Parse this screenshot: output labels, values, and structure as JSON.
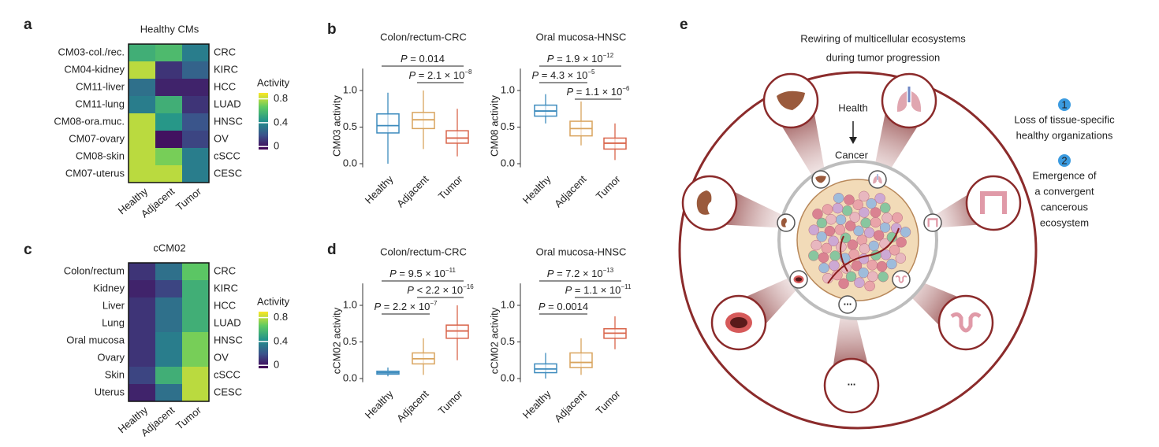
{
  "panel_labels": [
    "a",
    "b",
    "c",
    "d",
    "e"
  ],
  "chart_data": [
    {
      "type": "heatmap",
      "title": "Healthy CMs",
      "rows": [
        "CM03-col./rec.",
        "CM04-kidney",
        "CM11-liver",
        "CM11-lung",
        "CM08-ora.muc.",
        "CM07-ovary",
        "CM08-skin",
        "CM07-uterus"
      ],
      "rows_right": [
        "CRC",
        "KIRC",
        "HCC",
        "LUAD",
        "HNSC",
        "OV",
        "cSCC",
        "CESC"
      ],
      "columns": [
        "Healthy",
        "Adjacent",
        "Tumor"
      ],
      "values": [
        [
          0.55,
          0.6,
          0.35
        ],
        [
          0.8,
          0.1,
          0.25
        ],
        [
          0.3,
          0.05,
          0.05
        ],
        [
          0.35,
          0.55,
          0.1
        ],
        [
          0.8,
          0.45,
          0.2
        ],
        [
          0.8,
          0.0,
          0.15
        ],
        [
          0.8,
          0.7,
          0.35
        ],
        [
          0.8,
          0.8,
          0.35
        ]
      ],
      "colorbar_title": "Activity",
      "colorbar_lim": [
        -0.05,
        0.9
      ],
      "colorbar_ticks": [
        0,
        0.4,
        0.8
      ]
    },
    {
      "type": "box",
      "title": "Colon/rectum-CRC",
      "ylabel": "CM03 activity",
      "categories": [
        "Healthy",
        "Adjacent",
        "Tumor"
      ],
      "colors": [
        "#3d8bbd",
        "#d9a45e",
        "#d9654b"
      ],
      "stats": [
        {
          "min": 0,
          "q1": 0.42,
          "median": 0.52,
          "q3": 0.68,
          "max": 0.97
        },
        {
          "min": 0.2,
          "q1": 0.48,
          "median": 0.6,
          "q3": 0.7,
          "max": 1.0
        },
        {
          "min": 0.1,
          "q1": 0.28,
          "median": 0.35,
          "q3": 0.45,
          "max": 0.75
        }
      ],
      "ylim": [
        -0.05,
        1.3
      ],
      "yticks": [
        {
          "value": 0,
          "label": "0.0"
        },
        {
          "value": 0.5,
          "label": "0.5"
        },
        {
          "value": 1,
          "label": "1.0"
        }
      ],
      "annotations": [
        {
          "italic": "P",
          "text": " = 0.014"
        },
        {
          "italic": "P",
          "text": " = 2.1 × 10",
          "exp": "−8"
        }
      ]
    },
    {
      "type": "box",
      "title": "Oral mucosa-HNSC",
      "ylabel": "CM08 activity",
      "categories": [
        "Healthy",
        "Adjacent",
        "Tumor"
      ],
      "colors": [
        "#3d8bbd",
        "#d9a45e",
        "#d9654b"
      ],
      "stats": [
        {
          "min": 0.55,
          "q1": 0.65,
          "median": 0.72,
          "q3": 0.8,
          "max": 0.95
        },
        {
          "min": 0.25,
          "q1": 0.38,
          "median": 0.48,
          "q3": 0.58,
          "max": 0.85
        },
        {
          "min": 0.05,
          "q1": 0.2,
          "median": 0.28,
          "q3": 0.35,
          "max": 0.55
        }
      ],
      "ylim": [
        -0.05,
        1.3
      ],
      "yticks": [
        {
          "value": 0,
          "label": "0.0"
        },
        {
          "value": 0.5,
          "label": "0.5"
        },
        {
          "value": 1,
          "label": "1.0"
        }
      ],
      "annotations": [
        {
          "italic": "P",
          "text": " = 1.9 × 10",
          "exp": "−12"
        },
        {
          "italic": "P",
          "text": " = 4.3 × 10",
          "exp": "−5"
        },
        {
          "italic": "P",
          "text": " = 1.1 × 10",
          "exp": "−6"
        }
      ]
    },
    {
      "type": "heatmap",
      "title": "cCM02",
      "rows": [
        "Colon/rectum",
        "Kidney",
        "Liver",
        "Lung",
        "Oral mucosa",
        "Ovary",
        "Skin",
        "Uterus"
      ],
      "rows_right": [
        "CRC",
        "KIRC",
        "HCC",
        "LUAD",
        "HNSC",
        "OV",
        "cSCC",
        "CESC"
      ],
      "columns": [
        "Healthy",
        "Adjacent",
        "Tumor"
      ],
      "values": [
        [
          0.1,
          0.3,
          0.65
        ],
        [
          0.05,
          0.15,
          0.55
        ],
        [
          0.1,
          0.3,
          0.55
        ],
        [
          0.1,
          0.3,
          0.55
        ],
        [
          0.1,
          0.35,
          0.7
        ],
        [
          0.1,
          0.35,
          0.7
        ],
        [
          0.15,
          0.55,
          0.8
        ],
        [
          0.05,
          0.3,
          0.8
        ]
      ],
      "colorbar_title": "Activity",
      "colorbar_lim": [
        -0.05,
        0.9
      ],
      "colorbar_ticks": [
        0,
        0.4,
        0.8
      ]
    },
    {
      "type": "box",
      "title": "Colon/rectum-CRC",
      "ylabel": "cCM02 activity",
      "categories": [
        "Healthy",
        "Adjacent",
        "Tumor"
      ],
      "colors": [
        "#3d8bbd",
        "#d9a45e",
        "#d9654b"
      ],
      "stats": [
        {
          "min": 0.03,
          "q1": 0.06,
          "median": 0.08,
          "q3": 0.1,
          "max": 0.15
        },
        {
          "min": 0.05,
          "q1": 0.2,
          "median": 0.27,
          "q3": 0.35,
          "max": 0.55
        },
        {
          "min": 0.25,
          "q1": 0.55,
          "median": 0.65,
          "q3": 0.73,
          "max": 1.0
        }
      ],
      "ylim": [
        -0.05,
        1.3
      ],
      "yticks": [
        {
          "value": 0,
          "label": "0.0"
        },
        {
          "value": 0.5,
          "label": "0.5"
        },
        {
          "value": 1,
          "label": "1.0"
        }
      ],
      "annotations": [
        {
          "italic": "P",
          "text": " = 9.5 × 10",
          "exp": "−11"
        },
        {
          "italic": "P",
          "text": " < 2.2 × 10",
          "exp": "−16"
        },
        {
          "italic": "P",
          "text": " = 2.2 × 10",
          "exp": "−7"
        }
      ]
    },
    {
      "type": "box",
      "title": "Oral mucosa-HNSC",
      "ylabel": "cCM02 activity",
      "categories": [
        "Healthy",
        "Adjacent",
        "Tumor"
      ],
      "colors": [
        "#3d8bbd",
        "#d9a45e",
        "#d9654b"
      ],
      "stats": [
        {
          "min": 0.0,
          "q1": 0.08,
          "median": 0.13,
          "q3": 0.2,
          "max": 0.35
        },
        {
          "min": 0.05,
          "q1": 0.15,
          "median": 0.22,
          "q3": 0.35,
          "max": 0.55
        },
        {
          "min": 0.4,
          "q1": 0.55,
          "median": 0.62,
          "q3": 0.68,
          "max": 0.85
        }
      ],
      "ylim": [
        -0.05,
        1.3
      ],
      "yticks": [
        {
          "value": 0,
          "label": "0.0"
        },
        {
          "value": 0.5,
          "label": "0.5"
        },
        {
          "value": 1,
          "label": "1.0"
        }
      ],
      "annotations": [
        {
          "italic": "P",
          "text": " = 7.2 × 10",
          "exp": "−13"
        },
        {
          "italic": "P",
          "text": " = 1.1 × 10",
          "exp": "−11"
        },
        {
          "italic": "P",
          "text": " = 0.0014"
        }
      ]
    }
  ],
  "diagram": {
    "title": [
      "Rewiring of multicellular ecosystems",
      "during tumor progression"
    ],
    "health": "Health",
    "cancer": "Cancer",
    "ellipsis": "...",
    "steps": [
      {
        "number": "1",
        "lines": [
          "Loss of tissue-specific",
          "healthy organizations"
        ]
      },
      {
        "number": "2",
        "lines": [
          "Emergence of",
          "a convergent",
          "cancerous",
          "ecosystem"
        ]
      }
    ]
  }
}
